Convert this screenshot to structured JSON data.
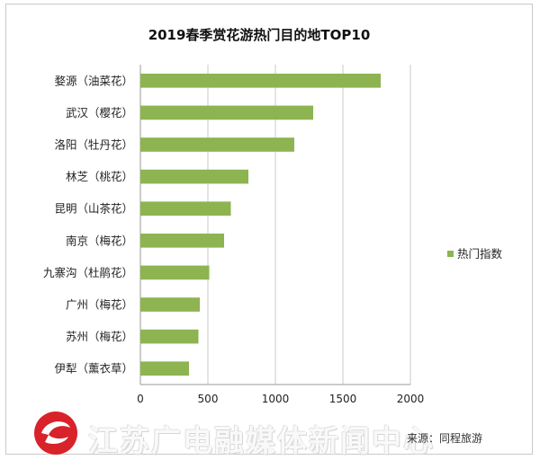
{
  "chart_data": {
    "type": "bar",
    "orientation": "horizontal",
    "title": "2019春季赏花游热门目的地TOP10",
    "categories": [
      "婺源（油菜花）",
      "武汉（樱花）",
      "洛阳（牡丹花）",
      "林芝（桃花）",
      "昆明（山茶花）",
      "南京（梅花）",
      "九寨沟（杜鹃花）",
      "广州（梅花）",
      "苏州（梅花）",
      "伊犁（薰衣草）"
    ],
    "series": [
      {
        "name": "热门指数",
        "values": [
          1780,
          1280,
          1140,
          800,
          670,
          620,
          510,
          440,
          430,
          360
        ]
      }
    ],
    "xlim": [
      0,
      2000
    ],
    "xticks": [
      0,
      500,
      1000,
      1500,
      2000
    ],
    "grid": true,
    "legend_position": "right",
    "bar_color": "#8db451"
  },
  "watermark": {
    "text": "江苏广电融媒体新闻中心"
  },
  "source": "来源：同程旅游"
}
